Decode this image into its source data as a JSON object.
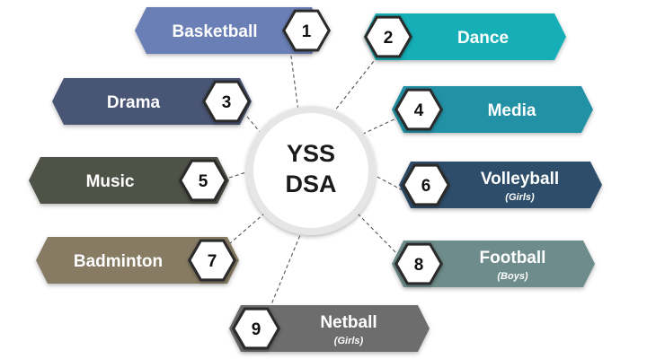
{
  "center": {
    "line1": "YSS",
    "line2": "DSA"
  },
  "items": [
    {
      "number": "1",
      "label": "Basketball",
      "sublabel": "",
      "color": "#6A7FB6"
    },
    {
      "number": "2",
      "label": "Dance",
      "sublabel": "",
      "color": "#13AFB7"
    },
    {
      "number": "3",
      "label": "Drama",
      "sublabel": "",
      "color": "#4A5475"
    },
    {
      "number": "4",
      "label": "Media",
      "sublabel": "",
      "color": "#2191A5"
    },
    {
      "number": "5",
      "label": "Music",
      "sublabel": "",
      "color": "#4F5347"
    },
    {
      "number": "6",
      "label": "Volleyball",
      "sublabel": "(Girls)",
      "color": "#2E4E6A"
    },
    {
      "number": "7",
      "label": "Badminton",
      "sublabel": "",
      "color": "#877B63"
    },
    {
      "number": "8",
      "label": "Football",
      "sublabel": "(Boys)",
      "color": "#6E8C8B"
    },
    {
      "number": "9",
      "label": "Netball",
      "sublabel": "(Girls)",
      "color": "#6D6D6D"
    }
  ]
}
